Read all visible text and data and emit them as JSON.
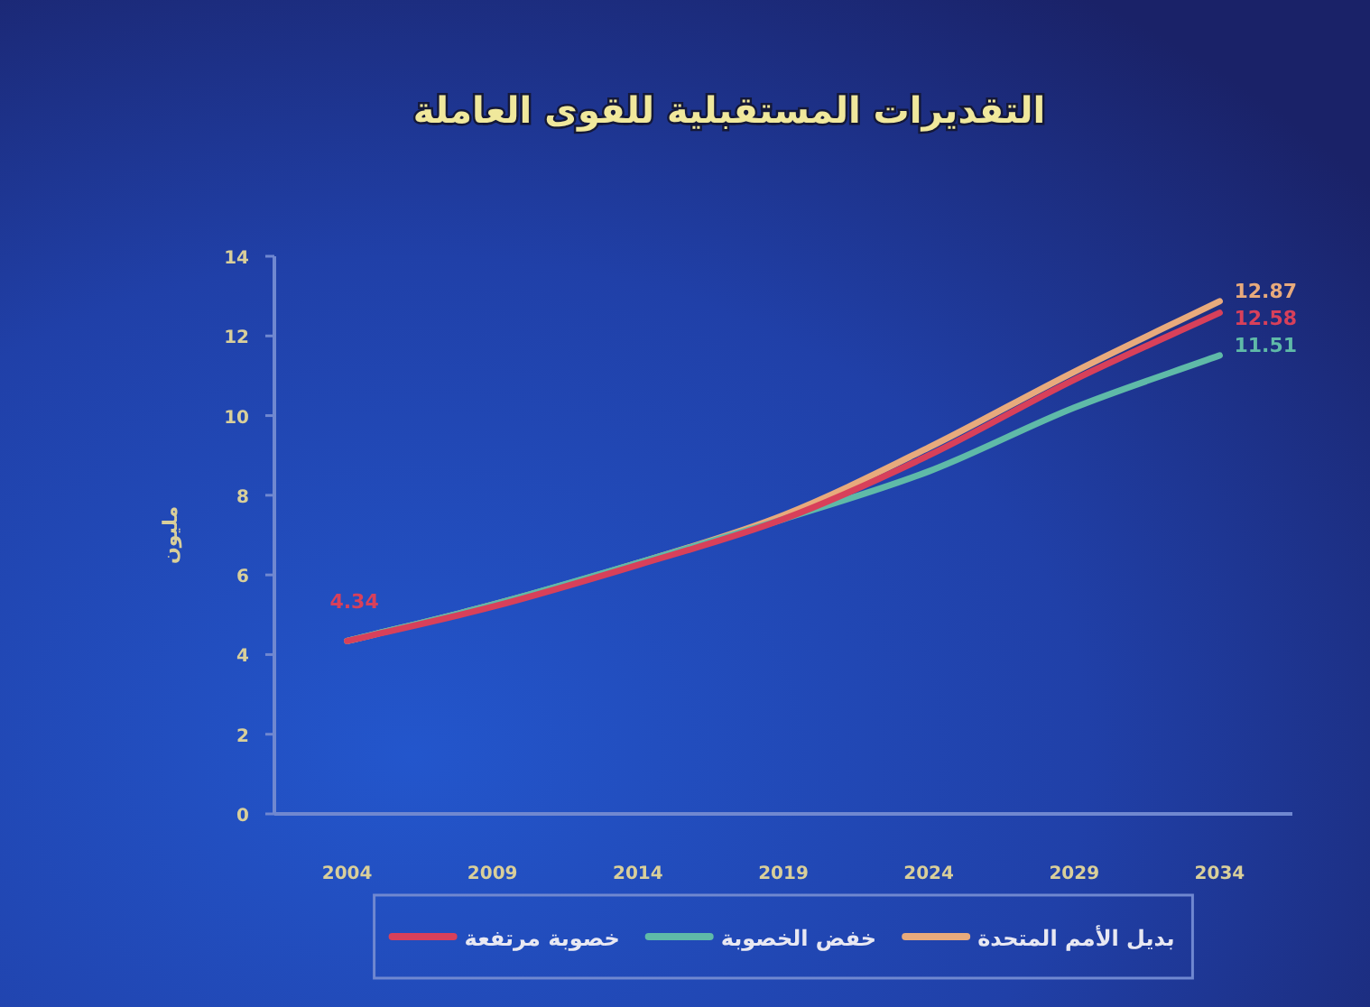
{
  "chart_data": {
    "type": "line",
    "title": "التقديرات المستقبلية للقوى العاملة",
    "ylabel": "مليون",
    "x": [
      2004,
      2009,
      2014,
      2019,
      2024,
      2029,
      2034
    ],
    "xlim": [
      2001.5,
      2036.5
    ],
    "xticks": [
      2004,
      2009,
      2014,
      2019,
      2024,
      2029,
      2034
    ],
    "ylim": [
      0,
      14
    ],
    "yticks": [
      0,
      2,
      4,
      6,
      8,
      10,
      12,
      14
    ],
    "legend": "bottom",
    "series": [
      {
        "name": "بديل الأمم المتحدة",
        "color": "#e8aa7c",
        "values": [
          4.34,
          5.25,
          6.3,
          7.5,
          9.2,
          11.1,
          12.87
        ],
        "value_labels": [
          null,
          null,
          null,
          null,
          null,
          null,
          "12.87"
        ]
      },
      {
        "name": "خفض الخصوبة",
        "color": "#5fbaa8",
        "values": [
          4.34,
          5.25,
          6.3,
          7.4,
          8.6,
          10.2,
          11.51
        ],
        "value_labels": [
          null,
          null,
          null,
          null,
          null,
          null,
          "11.51"
        ]
      },
      {
        "name": "خصوبة مرتفعة",
        "color": "#d8405a",
        "values": [
          4.34,
          5.2,
          6.25,
          7.4,
          9.0,
          10.9,
          12.58
        ],
        "value_labels": [
          "4.34",
          null,
          null,
          null,
          null,
          null,
          "12.58"
        ]
      }
    ]
  }
}
